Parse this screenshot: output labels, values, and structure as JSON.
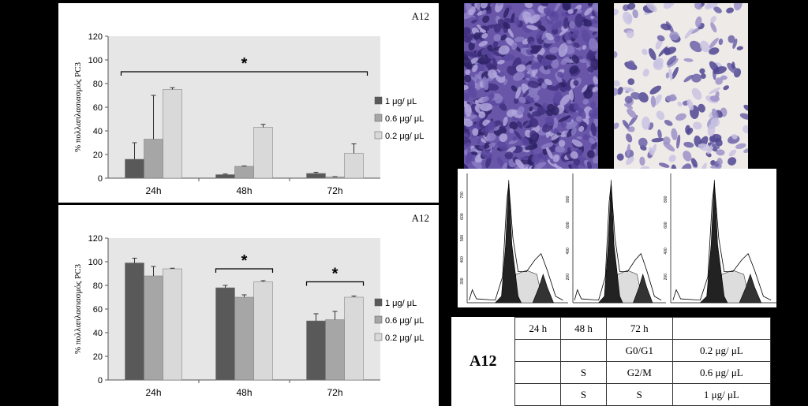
{
  "chart_data": [
    {
      "type": "bar",
      "panel_label": "A12",
      "ylabel": "% πολλαπλασιασμός PC3",
      "ylim": [
        0,
        120
      ],
      "yticks": [
        0,
        20,
        40,
        60,
        80,
        100,
        120
      ],
      "categories": [
        "24h",
        "48h",
        "72h"
      ],
      "series": [
        {
          "name": "1 μg/ μL",
          "color": "#595959",
          "values": [
            16,
            3,
            4
          ],
          "errors": [
            14,
            0.5,
            1
          ]
        },
        {
          "name": "0.6 μg/ μL",
          "color": "#a6a6a6",
          "values": [
            33,
            10,
            1
          ],
          "errors": [
            37,
            0.3,
            0.3
          ]
        },
        {
          "name": "0.2 μg/ μL",
          "color": "#d9d9d9",
          "values": [
            75,
            43,
            21
          ],
          "errors": [
            1.5,
            2.5,
            8
          ]
        }
      ],
      "significance": [
        {
          "label": "*",
          "span": [
            "24h",
            "72h"
          ],
          "y": 90
        }
      ],
      "legend": "right"
    },
    {
      "type": "bar",
      "panel_label": "A12",
      "ylabel": "% πολλαπλασιασμός PC3",
      "ylim": [
        0,
        120
      ],
      "yticks": [
        0,
        20,
        40,
        60,
        80,
        100,
        120
      ],
      "categories": [
        "24h",
        "48h",
        "72h"
      ],
      "series": [
        {
          "name": "1 μg/ μL",
          "color": "#595959",
          "values": [
            99,
            78,
            50
          ],
          "errors": [
            4,
            2,
            6
          ]
        },
        {
          "name": "0.6 μg/ μL",
          "color": "#a6a6a6",
          "values": [
            88,
            70,
            51
          ],
          "errors": [
            8,
            2,
            7
          ]
        },
        {
          "name": "0.2 μg/ μL",
          "color": "#d9d9d9",
          "values": [
            94,
            83,
            70
          ],
          "errors": [
            0.5,
            1,
            1
          ]
        }
      ],
      "significance": [
        {
          "label": "*",
          "span": [
            "48h",
            "48h"
          ],
          "y": 94
        },
        {
          "label": "*",
          "span": [
            "72h",
            "72h"
          ],
          "y": 83
        }
      ],
      "legend": "right"
    }
  ],
  "micrographs": {
    "left_color": "#6a56a8",
    "right_color": "#eeeae8"
  },
  "flow_cytometry": {
    "panels": [
      {
        "ytick_labels": [
          "300",
          "400",
          "500",
          "600",
          "700"
        ]
      },
      {
        "ytick_labels": [
          "200",
          "400",
          "600",
          "800"
        ]
      },
      {
        "ytick_labels": [
          "200",
          "400",
          "600",
          "800"
        ]
      }
    ]
  },
  "table": {
    "label": "A12",
    "headers": [
      "24 h",
      "48 h",
      "72 h",
      ""
    ],
    "rows": [
      [
        "",
        "",
        "G0/G1",
        "0.2 μg/ μL"
      ],
      [
        "",
        "S",
        "G2/M",
        "0.6 μg/ μL"
      ],
      [
        "",
        "S",
        "S",
        "1 μg/ μL"
      ]
    ]
  }
}
